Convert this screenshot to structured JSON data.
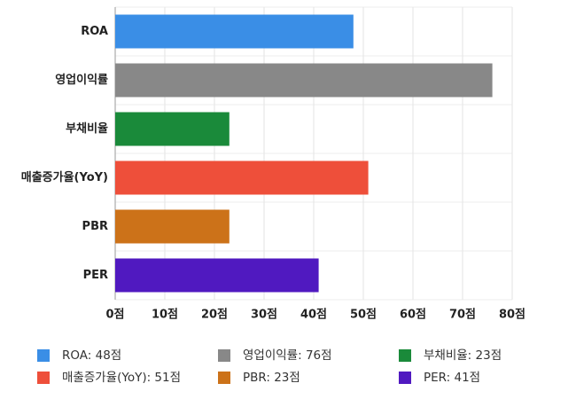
{
  "chart_data": {
    "type": "bar",
    "orientation": "horizontal",
    "categories": [
      "ROA",
      "영업이익률",
      "부채비율",
      "매출증가율(YoY)",
      "PBR",
      "PER"
    ],
    "values": [
      48,
      76,
      23,
      51,
      23,
      41
    ],
    "value_labels": [
      "ROA: 48점",
      "영업이익률: 76점",
      "부채비율: 23점",
      "매출증가율(YoY): 51점",
      "PBR: 23점",
      "PER: 41점"
    ],
    "colors": [
      "#3a8ee6",
      "#888888",
      "#1a8a3a",
      "#ee4f3a",
      "#cc7219",
      "#5019c0"
    ],
    "xlim": [
      0,
      80
    ],
    "xticks": [
      {
        "value": 0,
        "label": "0점"
      },
      {
        "value": 10,
        "label": "10점"
      },
      {
        "value": 20,
        "label": "20점"
      },
      {
        "value": 30,
        "label": "30점"
      },
      {
        "value": 40,
        "label": "40점"
      },
      {
        "value": 50,
        "label": "50점"
      },
      {
        "value": 60,
        "label": "60점"
      },
      {
        "value": 70,
        "label": "70점"
      },
      {
        "value": 80,
        "label": "80점"
      }
    ],
    "grid": true
  }
}
